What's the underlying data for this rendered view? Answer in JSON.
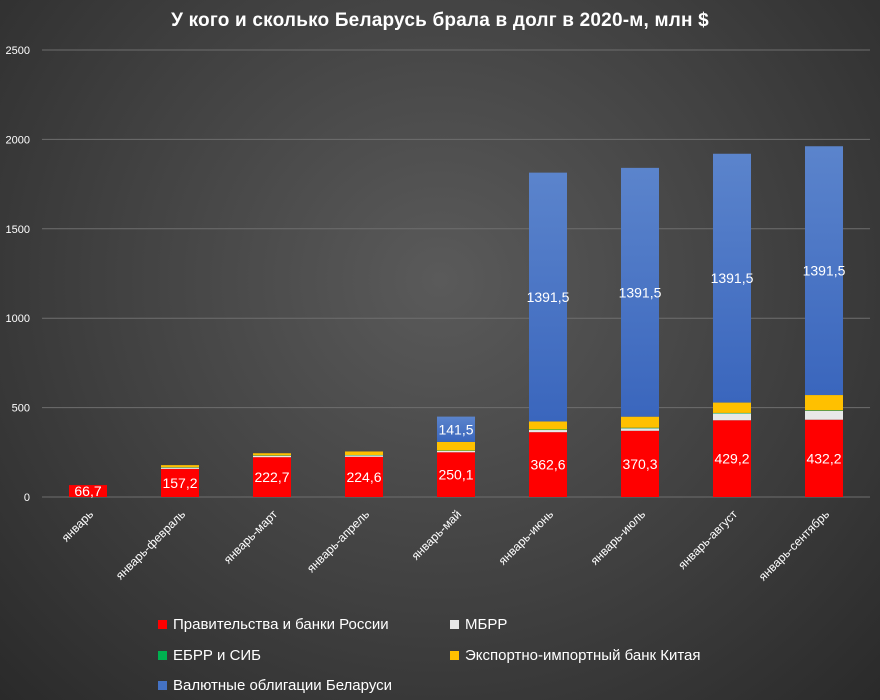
{
  "chart_data": {
    "type": "bar",
    "stacked": true,
    "title": "У кого и сколько Беларусь брала в долг в 2020-м, млн $",
    "ylim": [
      0,
      2500
    ],
    "yticks": [
      0,
      500,
      1000,
      1500,
      2000,
      2500
    ],
    "grid": true,
    "legend_position": "bottom",
    "categories": [
      "январь",
      "январь-февраль",
      "январь-март",
      "январь-апрель",
      "январь-май",
      "январь-июнь",
      "январь-июль",
      "январь-август",
      "январь-сентябрь"
    ],
    "series": [
      {
        "name": "Правительства и банки России",
        "color": "#ff0000",
        "values": [
          66.7,
          157.2,
          222.7,
          224.6,
          250.1,
          362.6,
          370.3,
          429.2,
          432.2
        ],
        "labels": [
          "66,7",
          "157,2",
          "222,7",
          "224,6",
          "250,1",
          "362,6",
          "370,3",
          "429,2",
          "432,2"
        ]
      },
      {
        "name": "МБРР",
        "color": "#e8e8e8",
        "values": [
          0,
          7,
          8,
          8,
          8,
          12,
          14,
          38,
          50
        ],
        "labels": []
      },
      {
        "name": "ЕБРР и СИБ",
        "color": "#00b050",
        "values": [
          0,
          2,
          2,
          2,
          2,
          3,
          3,
          3,
          3
        ],
        "labels": []
      },
      {
        "name": "Экспортно-импортный банк Китая",
        "color": "#ffc000",
        "values": [
          0,
          12,
          12,
          20,
          48,
          45,
          62,
          58,
          85
        ],
        "labels": []
      },
      {
        "name": "Валютные облигации Беларуси",
        "color": "#4472c4",
        "values": [
          0,
          0,
          0,
          0,
          141.5,
          1391.5,
          1391.5,
          1391.5,
          1391.5
        ],
        "labels": [
          "",
          "",
          "",
          "",
          "141,5",
          "1391,5",
          "1391,5",
          "1391,5",
          "1391,5"
        ]
      }
    ]
  }
}
